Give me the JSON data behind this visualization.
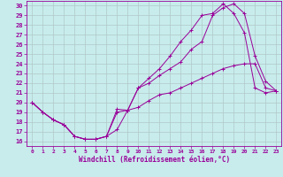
{
  "xlabel": "Windchill (Refroidissement éolien,°C)",
  "bg_color": "#c8ecec",
  "line_color": "#990099",
  "grid_color": "#b0c8c8",
  "xlim": [
    -0.5,
    23.5
  ],
  "ylim": [
    15.5,
    30.5
  ],
  "xticks": [
    0,
    1,
    2,
    3,
    4,
    5,
    6,
    7,
    8,
    9,
    10,
    11,
    12,
    13,
    14,
    15,
    16,
    17,
    18,
    19,
    20,
    21,
    22,
    23
  ],
  "yticks": [
    16,
    17,
    18,
    19,
    20,
    21,
    22,
    23,
    24,
    25,
    26,
    27,
    28,
    29,
    30
  ],
  "line1_x": [
    0,
    1,
    2,
    3,
    4,
    5,
    6,
    7,
    8,
    9,
    10,
    11,
    12,
    13,
    14,
    15,
    16,
    17,
    18,
    19,
    20,
    21,
    22,
    23
  ],
  "line1_y": [
    20,
    19,
    18.2,
    17.7,
    16.5,
    16.2,
    16.2,
    16.5,
    19.3,
    19.2,
    21.5,
    22.0,
    22.8,
    23.5,
    24.2,
    25.5,
    26.3,
    29.0,
    29.8,
    30.2,
    29.2,
    24.8,
    22.2,
    21.2
  ],
  "line2_x": [
    0,
    1,
    2,
    3,
    4,
    5,
    6,
    7,
    8,
    9,
    10,
    11,
    12,
    13,
    14,
    15,
    16,
    17,
    18,
    19,
    20,
    21,
    22,
    23
  ],
  "line2_y": [
    20,
    19,
    18.2,
    17.7,
    16.5,
    16.2,
    16.2,
    16.5,
    19.0,
    19.2,
    21.5,
    22.5,
    23.5,
    24.8,
    26.3,
    27.5,
    29.0,
    29.2,
    30.2,
    29.2,
    27.2,
    21.5,
    21.0,
    21.2
  ],
  "line3_x": [
    0,
    1,
    2,
    3,
    4,
    5,
    6,
    7,
    8,
    9,
    10,
    11,
    12,
    13,
    14,
    15,
    16,
    17,
    18,
    19,
    20,
    21,
    22,
    23
  ],
  "line3_y": [
    20,
    19,
    18.2,
    17.7,
    16.5,
    16.2,
    16.2,
    16.5,
    17.2,
    19.2,
    19.5,
    20.2,
    20.8,
    21.0,
    21.5,
    22.0,
    22.5,
    23.0,
    23.5,
    23.8,
    24.0,
    24.0,
    21.5,
    21.2
  ]
}
